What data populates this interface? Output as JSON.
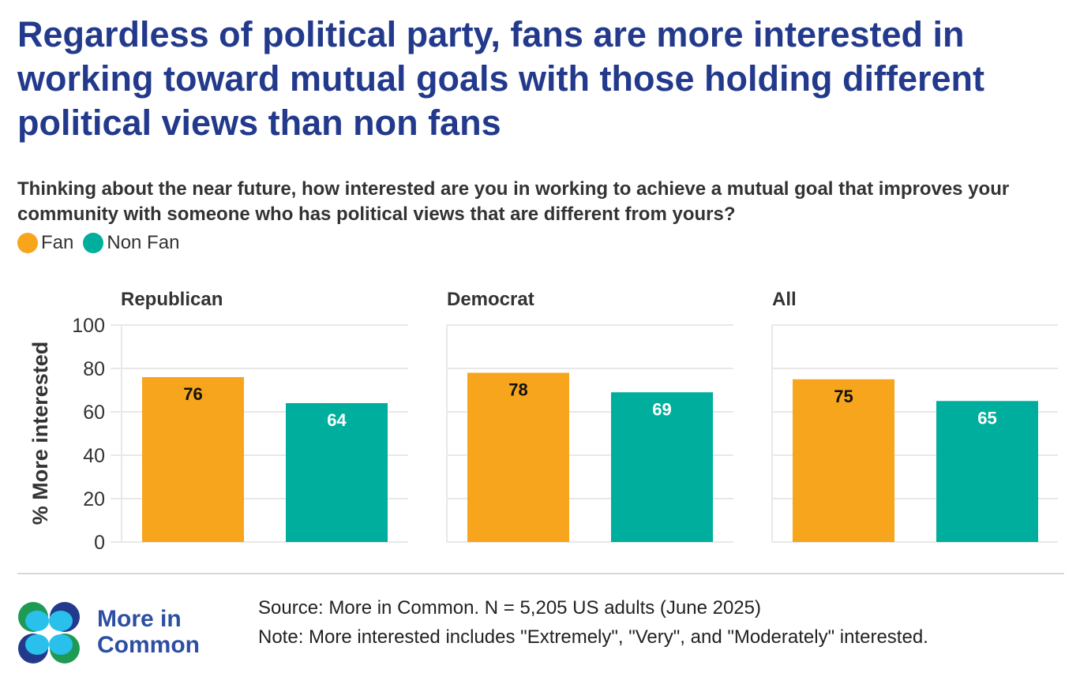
{
  "title": "Regardless of political party, fans are more interested in working toward mutual goals with those holding different political views than non fans",
  "subtitle": "Thinking about the near future, how interested are you in working to achieve a mutual goal that improves your community with someone who has political views that are different from yours?",
  "colors": {
    "fan": "#f7a51c",
    "non_fan": "#00ae9d",
    "title": "#233a8c"
  },
  "chart_data": {
    "type": "bar",
    "ylabel": "% More interested",
    "ylim": [
      0,
      100
    ],
    "yticks": [
      "0",
      "20",
      "40",
      "60",
      "80",
      "100"
    ],
    "grid": true,
    "legend": [
      {
        "name": "Fan"
      },
      {
        "name": "Non Fan"
      }
    ],
    "legend_placement": "top-left",
    "panels": [
      {
        "title": "Republican",
        "categories": [
          "Fan",
          "Non Fan"
        ],
        "values": [
          76,
          64
        ],
        "labels": [
          "76",
          "64"
        ]
      },
      {
        "title": "Democrat",
        "categories": [
          "Fan",
          "Non Fan"
        ],
        "values": [
          78,
          69
        ],
        "labels": [
          "78",
          "69"
        ]
      },
      {
        "title": "All",
        "categories": [
          "Fan",
          "Non Fan"
        ],
        "values": [
          75,
          65
        ],
        "labels": [
          "75",
          "65"
        ]
      }
    ]
  },
  "footer": {
    "source": "Source: More in Common. N = 5,205 US adults (June 2025)",
    "note": "Note: More interested includes \"Extremely\", \"Very\", and \"Moderately\" interested.",
    "logo_line1": "More in",
    "logo_line2": "Common"
  }
}
